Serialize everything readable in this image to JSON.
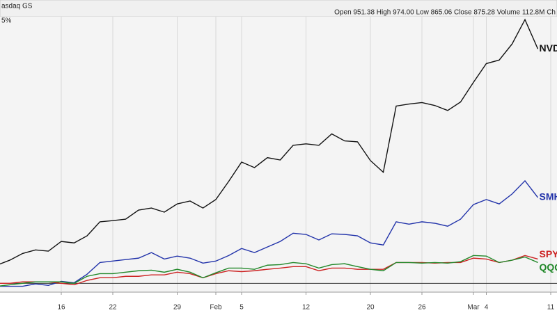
{
  "header": {
    "exchange": "asdaq GS",
    "quote": "Open 951.38 High 974.00 Low 865.06 Close 875.28 Volume 112.8M Ch",
    "scale_note": "5%"
  },
  "chart_data": {
    "type": "line",
    "categories": [
      null,
      null,
      null,
      null,
      null,
      "16",
      null,
      null,
      null,
      "22",
      null,
      null,
      null,
      null,
      "29",
      null,
      null,
      "Feb",
      null,
      "5",
      null,
      null,
      null,
      null,
      "12",
      null,
      null,
      null,
      null,
      "20",
      null,
      null,
      null,
      "26",
      null,
      null,
      null,
      "Mar",
      "4",
      null,
      null,
      null,
      null,
      "11"
    ],
    "ylim": [
      -3,
      91
    ],
    "grid": true,
    "series": [
      {
        "name": "NVDA",
        "color": "#111111",
        "values": [
          6.2,
          7.9,
          10.2,
          11.4,
          11.0,
          14.3,
          13.8,
          16.2,
          21.0,
          21.4,
          21.9,
          25.0,
          25.7,
          24.3,
          27.1,
          28.1,
          25.7,
          28.6,
          34.8,
          41.4,
          39.5,
          42.9,
          42.1,
          47.1,
          47.6,
          47.1,
          51.0,
          48.6,
          48.3,
          41.9,
          37.9,
          60.5,
          61.2,
          61.7,
          60.7,
          59.0,
          61.9,
          68.6,
          75.0,
          76.2,
          81.7,
          90.0,
          80.0,
          null
        ]
      },
      {
        "name": "SMH",
        "color": "#2233aa",
        "values": [
          -1.0,
          -1.0,
          -1.0,
          -0.2,
          -0.7,
          0.7,
          0.2,
          3.1,
          7.1,
          7.6,
          8.1,
          8.6,
          10.5,
          8.3,
          9.3,
          8.6,
          6.9,
          7.6,
          9.5,
          11.9,
          10.5,
          12.4,
          14.3,
          17.1,
          16.7,
          14.8,
          16.9,
          16.7,
          16.2,
          13.8,
          13.1,
          21.0,
          20.2,
          21.0,
          20.5,
          19.5,
          21.9,
          26.9,
          28.6,
          27.1,
          30.5,
          35.0,
          29.3,
          null
        ]
      },
      {
        "name": "SPY",
        "color": "#cc2222",
        "values": [
          0,
          0,
          0.5,
          0.5,
          0.5,
          0,
          -0.5,
          1.0,
          1.9,
          1.9,
          2.4,
          2.4,
          2.9,
          2.9,
          3.8,
          3.3,
          1.9,
          3.3,
          4.3,
          4.0,
          4.3,
          4.8,
          5.2,
          5.7,
          5.7,
          4.3,
          5.2,
          5.2,
          4.8,
          4.8,
          4.8,
          7.1,
          7.1,
          7.1,
          6.9,
          7.1,
          7.1,
          8.6,
          8.3,
          7.1,
          7.9,
          9.5,
          8.3,
          null
        ]
      },
      {
        "name": "QQQ",
        "color": "#22882a",
        "values": [
          -1.0,
          -0.5,
          0,
          0.5,
          0.5,
          0.5,
          0,
          2.4,
          3.3,
          3.3,
          3.8,
          4.3,
          4.5,
          3.8,
          4.8,
          3.8,
          1.9,
          3.6,
          5.2,
          5.2,
          4.8,
          6.2,
          6.4,
          7.1,
          6.7,
          5.2,
          6.4,
          6.7,
          5.7,
          4.8,
          4.3,
          7.1,
          7.1,
          6.9,
          7.1,
          6.9,
          7.4,
          9.5,
          9.3,
          7.1,
          7.9,
          9.0,
          7.1,
          null
        ]
      }
    ]
  }
}
